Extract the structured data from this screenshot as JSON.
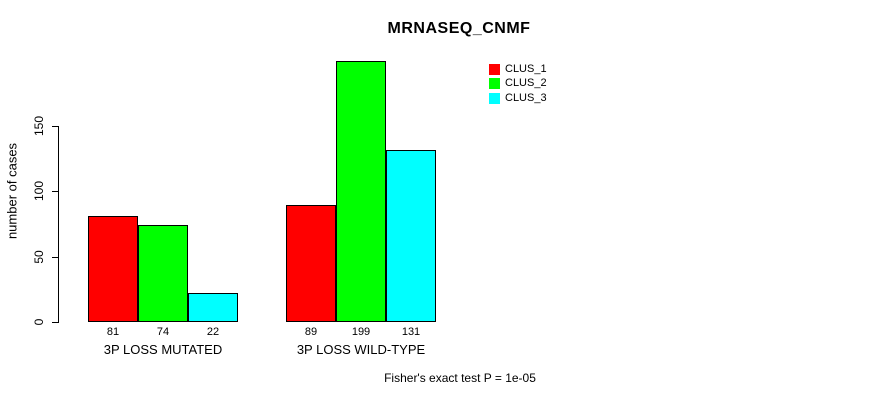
{
  "title": "MRNASEQ_CNMF",
  "chart_data": {
    "type": "bar",
    "title": "MRNASEQ_CNMF",
    "ylabel": "number of cases",
    "xlabel": "",
    "categories": [
      "3P LOSS MUTATED",
      "3P LOSS WILD-TYPE"
    ],
    "series": [
      {
        "name": "CLUS_1",
        "color": "#FF0000",
        "values": [
          81,
          89
        ]
      },
      {
        "name": "CLUS_2",
        "color": "#00FF00",
        "values": [
          74,
          199
        ]
      },
      {
        "name": "CLUS_3",
        "color": "#00FFFF",
        "values": [
          22,
          131
        ]
      }
    ],
    "bar_value_labels": [
      [
        81,
        74,
        22
      ],
      [
        89,
        199,
        131
      ]
    ],
    "yticks": [
      0,
      50,
      100,
      150
    ],
    "ylim": [
      0,
      205
    ],
    "grid": false,
    "legend_position": "top-right",
    "annotation": "Fisher's exact test P = 1e-05"
  },
  "colors": {
    "background": "#FFFFFF",
    "text": "#000000",
    "bar_border": "#000000"
  }
}
